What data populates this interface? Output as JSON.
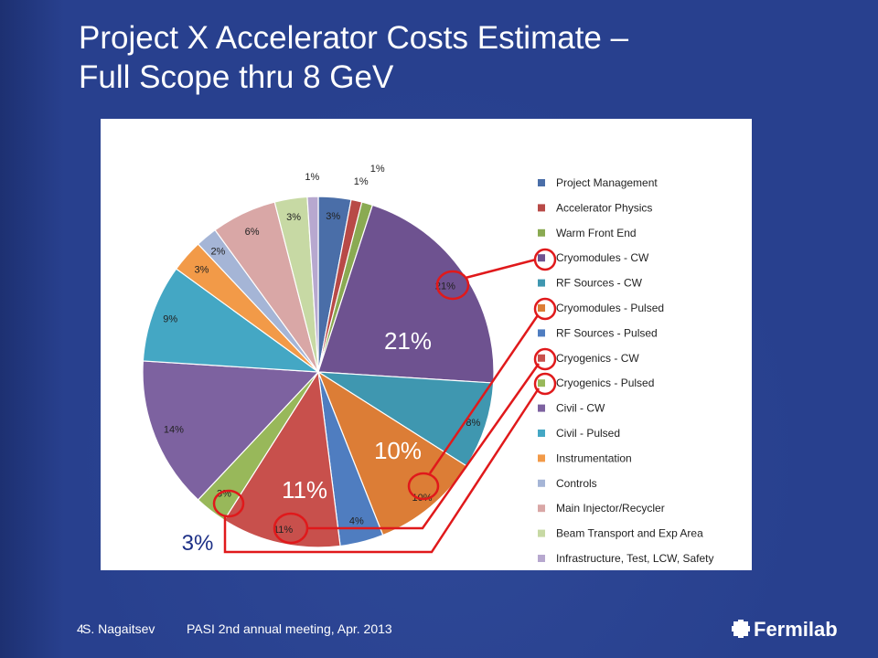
{
  "slide": {
    "title_line1": "Project X Accelerator Costs Estimate –",
    "title_line2": "Full Scope thru 8 GeV",
    "page_number": "4",
    "author": "S. Nagaitsev",
    "event": "PASI 2nd annual meeting, Apr. 2013",
    "logo_text": "Fermilab"
  },
  "chart_data": {
    "type": "pie",
    "slices": [
      {
        "label": "Project Management",
        "value": 3,
        "color": "#4a6ea8"
      },
      {
        "label": "Accelerator Physics",
        "value": 1,
        "color": "#b84a47"
      },
      {
        "label": "Warm Front End",
        "value": 1,
        "color": "#8aaa52"
      },
      {
        "label": "Cryomodules - CW",
        "value": 21,
        "color": "#6e5290"
      },
      {
        "label": "RF Sources - CW",
        "value": 8,
        "color": "#3f97b0"
      },
      {
        "label": "Cryomodules - Pulsed",
        "value": 10,
        "color": "#dc7d36"
      },
      {
        "label": "RF Sources - Pulsed",
        "value": 4,
        "color": "#4f7dc0"
      },
      {
        "label": "Cryogenics - CW",
        "value": 11,
        "color": "#c8504c"
      },
      {
        "label": "Cryogenics - Pulsed",
        "value": 3,
        "color": "#98b85a"
      },
      {
        "label": "Civil - CW",
        "value": 14,
        "color": "#7d62a0"
      },
      {
        "label": "Civil - Pulsed",
        "value": 9,
        "color": "#44a7c4"
      },
      {
        "label": "Instrumentation",
        "value": 3,
        "color": "#f29a48"
      },
      {
        "label": "Controls",
        "value": 2,
        "color": "#a5b5d6"
      },
      {
        "label": "Main Injector/Recycler",
        "value": 6,
        "color": "#d9a7a6"
      },
      {
        "label": "Beam Transport and Exp Area",
        "value": 3,
        "color": "#c7d9a4"
      },
      {
        "label": "Infrastructure, Test, LCW, Safety",
        "value": 1,
        "color": "#b7a8cf"
      }
    ],
    "slice_labels": [
      "3%",
      "1%",
      "1%",
      "21%",
      "8%",
      "10%",
      "4%",
      "11%",
      "3%",
      "14%",
      "9%",
      "3%",
      "2%",
      "6%",
      "3%",
      "1%"
    ],
    "callouts": [
      "21%",
      "10%",
      "11%",
      "3%"
    ],
    "legend_position": "right"
  },
  "colors": {
    "background": "#28408e",
    "highlight": "#e0191b",
    "callout_text": "#ffffff",
    "callout_text_dark": "#1c2f86"
  }
}
